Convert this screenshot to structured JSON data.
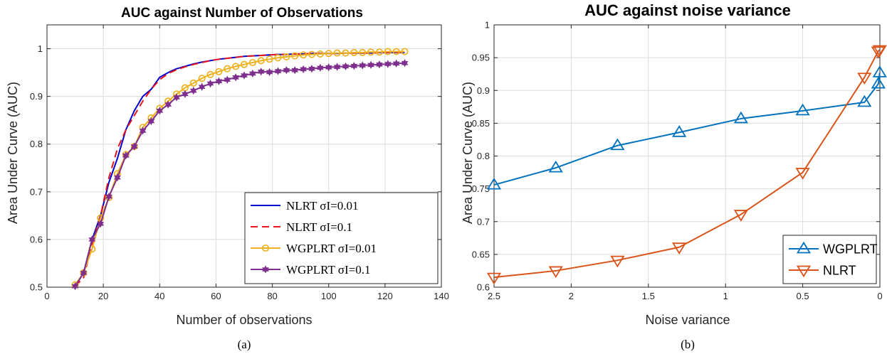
{
  "chart_data": [
    {
      "type": "line",
      "title": "AUC against Number of Observations",
      "xlabel": "Number of observations",
      "ylabel": "Area Under Curve (AUC)",
      "caption": "(a)",
      "xlim": [
        0,
        140
      ],
      "ylim": [
        0.5,
        1.05
      ],
      "xticks": [
        0,
        20,
        40,
        60,
        80,
        100,
        120,
        140
      ],
      "xtick_labels": [
        "0",
        "20",
        "40",
        "60",
        "80",
        "100",
        "120",
        "140"
      ],
      "yticks": [
        0.5,
        0.6,
        0.7,
        0.8,
        0.9,
        1.0
      ],
      "ytick_labels": [
        "0.5",
        "0.6",
        "0.7",
        "0.8",
        "0.9",
        "1"
      ],
      "grid": true,
      "legend_position": "bottom-right",
      "series": [
        {
          "name": "NLRT σI=0.01",
          "color": "#0000cc",
          "style": "solid",
          "x": [
            10,
            13,
            16,
            19,
            22,
            25,
            28,
            31,
            34,
            37,
            40,
            43,
            46,
            49,
            52,
            55,
            58,
            61,
            64,
            67,
            70,
            73,
            76,
            79,
            82,
            85,
            88,
            91,
            94,
            97,
            100,
            103,
            106,
            109,
            112,
            115,
            118,
            121,
            124,
            127
          ],
          "y": [
            0.502,
            0.53,
            0.6,
            0.65,
            0.72,
            0.77,
            0.83,
            0.87,
            0.9,
            0.915,
            0.94,
            0.95,
            0.958,
            0.963,
            0.968,
            0.972,
            0.975,
            0.978,
            0.98,
            0.982,
            0.984,
            0.985,
            0.986,
            0.987,
            0.988,
            0.988,
            0.989,
            0.989,
            0.99,
            0.99,
            0.99,
            0.99,
            0.991,
            0.991,
            0.991,
            0.991,
            0.992,
            0.992,
            0.992,
            0.992
          ]
        },
        {
          "name": "NLRT σI=0.1",
          "color": "#e8141c",
          "style": "dashed",
          "x": [
            10,
            13,
            16,
            19,
            22,
            25,
            28,
            31,
            34,
            37,
            40,
            43,
            46,
            49,
            52,
            55,
            58,
            61,
            64,
            67,
            70,
            73,
            76,
            79,
            82,
            85,
            88,
            91,
            94,
            97,
            100,
            103,
            106,
            109,
            112,
            115,
            118,
            121,
            124,
            127
          ],
          "y": [
            0.502,
            0.52,
            0.59,
            0.65,
            0.73,
            0.79,
            0.83,
            0.86,
            0.89,
            0.915,
            0.935,
            0.948,
            0.956,
            0.962,
            0.967,
            0.971,
            0.975,
            0.978,
            0.98,
            0.982,
            0.984,
            0.985,
            0.986,
            0.987,
            0.988,
            0.988,
            0.989,
            0.989,
            0.99,
            0.99,
            0.99,
            0.99,
            0.991,
            0.991,
            0.991,
            0.991,
            0.992,
            0.992,
            0.992,
            0.992
          ]
        },
        {
          "name": "WGPLRT σI=0.01",
          "color": "#edb120",
          "style": "solid",
          "marker": "circle",
          "x": [
            10,
            13,
            16,
            19,
            22,
            25,
            28,
            31,
            34,
            37,
            40,
            43,
            46,
            49,
            52,
            55,
            58,
            61,
            64,
            67,
            70,
            73,
            76,
            79,
            82,
            85,
            88,
            91,
            94,
            97,
            100,
            103,
            106,
            109,
            112,
            115,
            118,
            121,
            124,
            127
          ],
          "y": [
            0.505,
            0.53,
            0.58,
            0.645,
            0.688,
            0.738,
            0.778,
            0.795,
            0.835,
            0.855,
            0.875,
            0.89,
            0.905,
            0.918,
            0.928,
            0.938,
            0.946,
            0.952,
            0.958,
            0.963,
            0.967,
            0.971,
            0.975,
            0.978,
            0.981,
            0.983,
            0.985,
            0.987,
            0.988,
            0.989,
            0.99,
            0.991,
            0.991,
            0.992,
            0.992,
            0.993,
            0.993,
            0.994,
            0.994,
            0.994
          ]
        },
        {
          "name": "WGPLRT σI=0.1",
          "color": "#7e2f8e",
          "style": "solid",
          "marker": "star",
          "x": [
            10,
            13,
            16,
            19,
            22,
            25,
            28,
            31,
            34,
            37,
            40,
            43,
            46,
            49,
            52,
            55,
            58,
            61,
            64,
            67,
            70,
            73,
            76,
            79,
            82,
            85,
            88,
            91,
            94,
            97,
            100,
            103,
            106,
            109,
            112,
            115,
            118,
            121,
            124,
            127
          ],
          "y": [
            0.502,
            0.53,
            0.6,
            0.633,
            0.69,
            0.73,
            0.776,
            0.795,
            0.828,
            0.848,
            0.87,
            0.883,
            0.898,
            0.905,
            0.912,
            0.92,
            0.927,
            0.932,
            0.935,
            0.94,
            0.944,
            0.948,
            0.952,
            0.951,
            0.953,
            0.955,
            0.955,
            0.957,
            0.958,
            0.96,
            0.961,
            0.962,
            0.963,
            0.964,
            0.965,
            0.966,
            0.967,
            0.968,
            0.969,
            0.97
          ]
        }
      ]
    },
    {
      "type": "line",
      "title": "AUC against noise variance",
      "xlabel": "Noise variance",
      "ylabel": "Area Under Curve (AUC)",
      "caption": "(b)",
      "xlim": [
        2.5,
        0
      ],
      "x_reversed": true,
      "ylim": [
        0.6,
        1.0
      ],
      "xticks": [
        2.5,
        2,
        1.5,
        1,
        0.5,
        0
      ],
      "xtick_labels": [
        "2.5",
        "2",
        "1.5",
        "1",
        "0.5",
        "0"
      ],
      "yticks": [
        0.6,
        0.65,
        0.7,
        0.75,
        0.8,
        0.85,
        0.9,
        0.95,
        1.0
      ],
      "ytick_labels": [
        "0.6",
        "0.65",
        "0.7",
        "0.75",
        "0.8",
        "0.85",
        "0.9",
        "0.95",
        "1"
      ],
      "grid": true,
      "legend_position": "bottom-right",
      "series": [
        {
          "name": "WGPLRT",
          "color": "#0072bd",
          "marker": "triangle-up",
          "x": [
            2.5,
            2.1,
            1.7,
            1.3,
            0.9,
            0.5,
            0.1,
            0.01,
            0.001
          ],
          "y": [
            0.756,
            0.782,
            0.816,
            0.836,
            0.857,
            0.869,
            0.882,
            0.91,
            0.927
          ]
        },
        {
          "name": "NLRT",
          "color": "#d95319",
          "marker": "triangle-down",
          "x": [
            2.5,
            2.1,
            1.7,
            1.3,
            0.9,
            0.5,
            0.1,
            0.01,
            0.001
          ],
          "y": [
            0.615,
            0.625,
            0.641,
            0.661,
            0.711,
            0.775,
            0.92,
            0.96,
            0.962
          ]
        }
      ]
    }
  ]
}
